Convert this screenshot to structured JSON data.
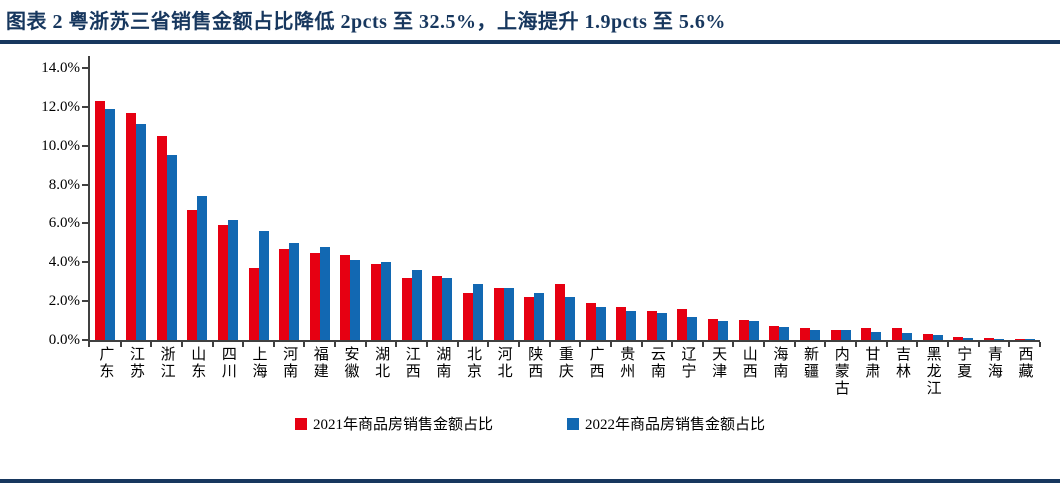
{
  "header": {
    "title": "图表 2  粤浙苏三省销售金额占比降低 2pcts 至 32.5%，上海提升 1.9pcts 至 5.6%"
  },
  "colors": {
    "accent_navy": "#17375E",
    "axis": "#404040",
    "series_2021": "#E60012",
    "series_2022": "#1268B2"
  },
  "chart_data": {
    "type": "bar",
    "title": "粤浙苏三省销售金额占比降低 2pcts 至 32.5%，上海提升 1.9pcts 至 5.6%",
    "categories": [
      "广东",
      "江苏",
      "浙江",
      "山东",
      "四川",
      "上海",
      "河南",
      "福建",
      "安徽",
      "湖北",
      "江西",
      "湖南",
      "北京",
      "河北",
      "陕西",
      "重庆",
      "广西",
      "贵州",
      "云南",
      "辽宁",
      "天津",
      "山西",
      "海南",
      "新疆",
      "内蒙古",
      "甘肃",
      "吉林",
      "黑龙江",
      "宁夏",
      "青海",
      "西藏"
    ],
    "series": [
      {
        "name": "2021年商品房销售金额占比",
        "color": "#E60012",
        "values": [
          12.3,
          11.7,
          10.5,
          6.7,
          5.9,
          3.7,
          4.7,
          4.5,
          4.4,
          3.9,
          3.2,
          3.3,
          2.4,
          2.7,
          2.2,
          2.9,
          1.9,
          1.7,
          1.5,
          1.6,
          1.1,
          1.05,
          0.7,
          0.6,
          0.5,
          0.6,
          0.6,
          0.3,
          0.15,
          0.1,
          0.04
        ]
      },
      {
        "name": "2022年商品房销售金额占比",
        "color": "#1268B2",
        "values": [
          11.9,
          11.1,
          9.5,
          7.4,
          6.2,
          5.6,
          5.0,
          4.8,
          4.1,
          4.0,
          3.6,
          3.2,
          2.9,
          2.7,
          2.4,
          2.2,
          1.7,
          1.5,
          1.4,
          1.2,
          1.0,
          1.0,
          0.65,
          0.5,
          0.5,
          0.4,
          0.35,
          0.25,
          0.12,
          0.05,
          0.02
        ]
      }
    ],
    "xlabel": "",
    "ylabel": "",
    "ylim": [
      0,
      14
    ],
    "ytick_step": 2,
    "ytick_labels": [
      "0.0%",
      "2.0%",
      "4.0%",
      "6.0%",
      "8.0%",
      "10.0%",
      "12.0%",
      "14.0%"
    ],
    "grid": false,
    "legend_position": "bottom"
  }
}
